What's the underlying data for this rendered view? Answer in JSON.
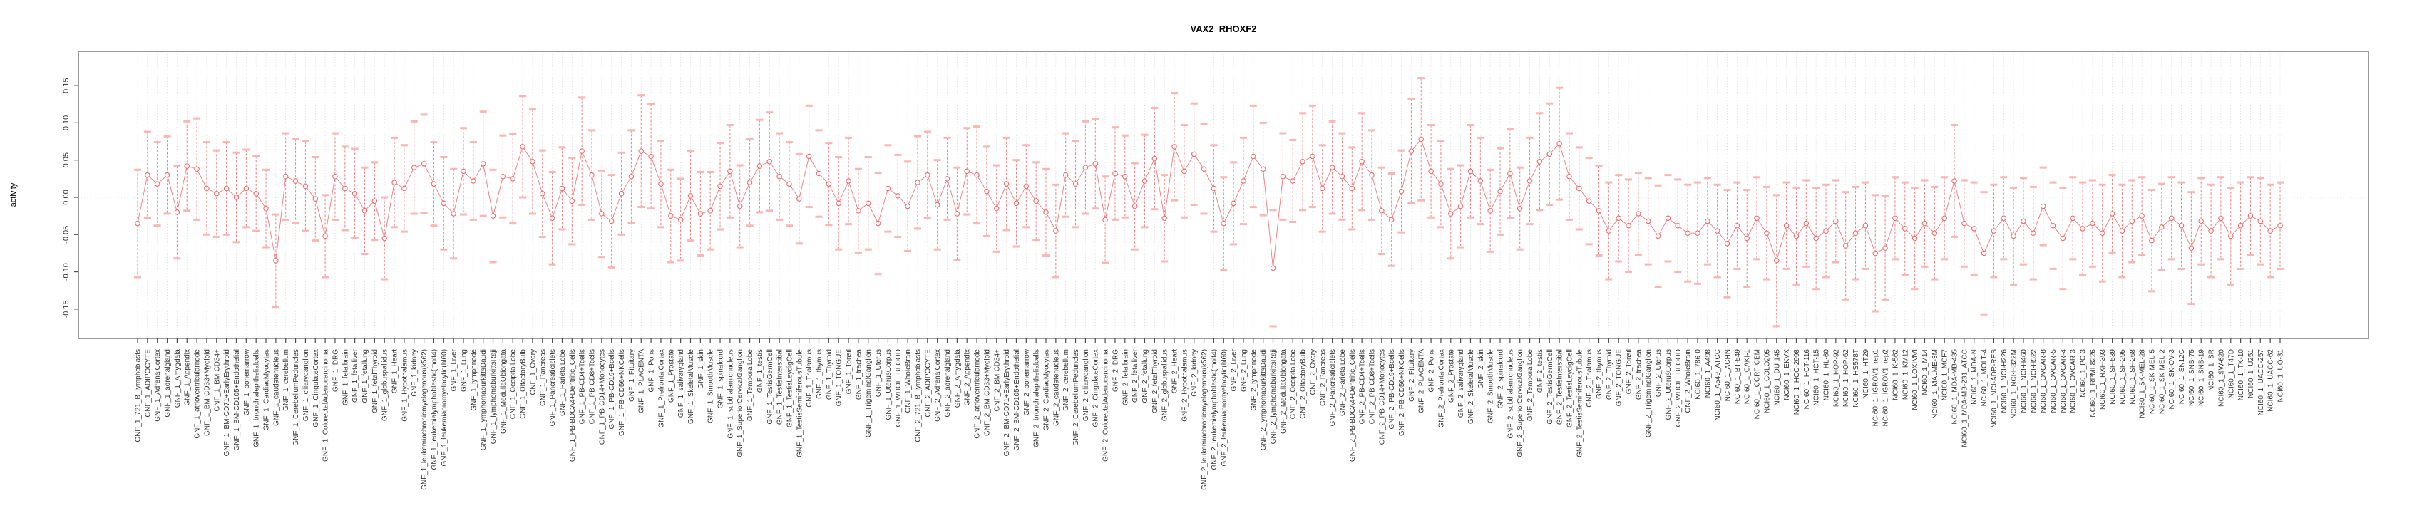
{
  "title": "VAX2_RHOXF2",
  "colors": {
    "series_main": "#F1696B",
    "errorbar_cap": "#F8B6B4",
    "gridline": "#d0d0d0",
    "zero_line": "#dadada",
    "panel_border": "#9a9a9a",
    "tick_mark": "#4d4d4d",
    "tick_text": "#333333",
    "title_text": "#000000",
    "background": "#ffffff"
  },
  "chart_data": {
    "type": "scatter",
    "title": "VAX2_RHOXF2",
    "xlabel": "",
    "ylabel": "activity",
    "ylim": [
      -0.19,
      0.196
    ],
    "yticks": [
      -0.15,
      -0.1,
      -0.05,
      0.0,
      0.05,
      0.1,
      0.15
    ],
    "grid": "vertical dotted gridline at every category; dotted horizontal line at y=0 only",
    "legend_position": "none",
    "error_bars": true,
    "point_style": "open-circle, connected by thin line, vertical dashed error bar with light caps",
    "groups": [
      {
        "prefix": "GNF_1_",
        "items": [
          "721_B_lymphoblasts",
          "ADIPOCYTE",
          "AdrenalCortex",
          "adrenalgland",
          "Amygdala",
          "Appendix",
          "atrioventricularnode",
          "BM-CD33+Myeloid",
          "BM-CD34+",
          "BM-CD71+EarlyErythroid",
          "BM-CD105+Endothelial",
          "bonemarrow",
          "bronchialepithelialcells",
          "CardiacMyocytes",
          "caudatenucleus",
          "cerebellum",
          "CerebellumPeduncles",
          "ciliaryganglion",
          "CingulateCortex",
          "ColorectalAdenocarcinoma",
          "DRG",
          "fetalbrain",
          "fetalliver",
          "fetallung",
          "fetalThyroid",
          "globuspallidus",
          "Heart",
          "Hypothalamus",
          "kidney",
          "leukemiachronicmyelogenous(k562)",
          "leukemialymphoblastic(molt4)",
          "leukemiapromyelocytic(hl60)",
          "Liver",
          "Lung",
          "lymphnode",
          "lymphomaburkittsDaudi",
          "lymphomaburkittsRaji",
          "MedullaOblongata",
          "OccipitalLobe",
          "OlfactoryBulb",
          "Ovary",
          "Pancreas",
          "PancreaticIslets",
          "ParietalLobe",
          "PB-BDCA4+Dentritic_Cells",
          "PB-CD4+Tcells",
          "PB-CD8+Tcells",
          "PB-CD14+Monocytes",
          "PB-CD19+Bcells",
          "PB-CD56+NKCells",
          "Pituitary",
          "PLACENTA",
          "Pons",
          "PrefrontalCortex",
          "Prostate",
          "salivarygland",
          "SkeletalMuscle",
          "skin",
          "SmoothMuscle",
          "spinalcord",
          "subthalamicnucleus",
          "SuperiorCervicalGanglion",
          "TemporalLobe",
          "testis",
          "TestisGermCell",
          "TestisInterstitial",
          "TestisLeydigCell",
          "TestisSeminiferousTubule",
          "Thalamus",
          "thymus",
          "Thyroid",
          "TONGUE",
          "Tonsil",
          "trachea",
          "TrigeminalGanglion",
          "Uterus",
          "UterusCorpus",
          "WHOLEBLOOD",
          "WholeBrain"
        ],
        "values": [
          -0.035,
          0.03,
          0.018,
          0.03,
          -0.02,
          0.042,
          0.038,
          0.012,
          0.005,
          0.012,
          0.0,
          0.012,
          0.005,
          -0.015,
          -0.085,
          0.028,
          0.022,
          0.015,
          -0.002,
          -0.052,
          0.028,
          0.012,
          0.005,
          -0.018,
          -0.005,
          -0.055,
          0.02,
          0.012,
          0.04,
          0.045,
          0.018,
          -0.008,
          -0.022,
          0.035,
          0.022,
          0.045,
          -0.025,
          0.028,
          0.025,
          0.068,
          0.048,
          0.005,
          -0.028,
          0.012,
          -0.005,
          0.062,
          0.03,
          -0.022,
          -0.032,
          0.005,
          0.028,
          0.062,
          0.055,
          0.018,
          -0.025,
          -0.03,
          0.002,
          -0.022,
          -0.018,
          0.015,
          0.035,
          -0.012,
          0.02,
          0.042,
          0.048,
          0.028,
          0.018,
          -0.002,
          0.055,
          0.032,
          0.018,
          -0.008,
          0.022,
          -0.018,
          -0.008,
          -0.035,
          0.012,
          0.002,
          -0.012
        ],
        "errors": [
          0.072,
          0.058,
          0.056,
          0.052,
          0.062,
          0.06,
          0.068,
          0.062,
          0.058,
          0.062,
          0.06,
          0.052,
          0.05,
          0.052,
          0.062,
          0.058,
          0.056,
          0.06,
          0.056,
          0.055,
          0.058,
          0.056,
          0.06,
          0.058,
          0.052,
          0.055,
          0.06,
          0.058,
          0.062,
          0.066,
          0.056,
          0.062,
          0.06,
          0.058,
          0.052,
          0.07,
          0.062,
          0.055,
          0.06,
          0.068,
          0.07,
          0.058,
          0.062,
          0.055,
          0.058,
          0.072,
          0.06,
          0.058,
          0.062,
          0.055,
          0.062,
          0.075,
          0.07,
          0.058,
          0.062,
          0.055,
          0.06,
          0.056,
          0.052,
          0.058,
          0.062,
          0.055,
          0.058,
          0.062,
          0.066,
          0.058,
          0.056,
          0.06,
          0.068,
          0.058,
          0.055,
          0.062,
          0.058,
          0.056,
          0.062,
          0.068,
          0.058,
          0.055,
          0.06
        ]
      },
      {
        "prefix": "GNF_2_",
        "items": [
          "721_B_lymphoblasts",
          "ADIPOCYTE",
          "AdrenalCortex",
          "adrenalgland",
          "Amygdala",
          "Appendix",
          "atrioventricularnode",
          "BM-CD33+Myeloid",
          "BM-CD34+",
          "BM-CD71+EarlyErythroid",
          "BM-CD105+Endothelial",
          "bonemarrow",
          "bronchialepithelialcells",
          "CardiacMyocytes",
          "caudatenucleus",
          "cerebellum",
          "CerebellumPeduncles",
          "ciliaryganglion",
          "CingulateCortex",
          "ColorectalAdenocarcinoma",
          "DRG",
          "fetalbrain",
          "fetalliver",
          "fetallung",
          "fetalThyroid",
          "globuspallidus",
          "Heart",
          "Hypothalamus",
          "kidney",
          "leukemiachronicmyelogenous(k562)",
          "leukemialymphoblastic(molt4)",
          "leukemiapromyelocytic(hl60)",
          "Liver",
          "Lung",
          "lymphnode",
          "lymphomaburkittsDaudi",
          "lymphomaburkittsRaji",
          "MedullaOblongata",
          "OccipitalLobe",
          "OlfactoryBulb",
          "Ovary",
          "Pancreas",
          "PancreaticIslets",
          "ParietalLobe",
          "PB-BDCA4+Dentritic_Cells",
          "PB-CD4+Tcells",
          "PB-CD8+Tcells",
          "PB-CD14+Monocytes",
          "PB-CD19+Bcells",
          "PB-CD56+NKCells",
          "Pituitary",
          "PLACENTA",
          "Pons",
          "PrefrontalCortex",
          "Prostate",
          "salivarygland",
          "SkeletalMuscle",
          "skin",
          "SmoothMuscle",
          "spinalcord",
          "subthalamicnucleus",
          "SuperiorCervicalGanglion",
          "TemporalLobe",
          "testis",
          "TestisGermCell",
          "TestisInterstitial",
          "TestisLeydigCell",
          "TestisSeminiferousTubule",
          "Thalamus",
          "thymus",
          "Thyroid",
          "TONGUE",
          "Tonsil",
          "trachea",
          "TrigeminalGanglion",
          "Uterus",
          "UterusCorpus",
          "WHOLEBLOOD",
          "WholeBrain"
        ],
        "values": [
          0.02,
          0.03,
          -0.01,
          0.025,
          -0.022,
          0.035,
          0.03,
          0.008,
          -0.015,
          0.018,
          -0.008,
          0.015,
          -0.005,
          -0.02,
          -0.045,
          0.03,
          0.018,
          0.04,
          0.045,
          -0.03,
          0.032,
          0.028,
          -0.012,
          0.022,
          0.052,
          -0.028,
          0.068,
          0.035,
          0.058,
          0.038,
          0.012,
          -0.035,
          -0.008,
          0.022,
          0.055,
          0.038,
          -0.095,
          0.028,
          0.022,
          0.048,
          0.055,
          0.012,
          0.04,
          0.028,
          0.012,
          0.048,
          0.03,
          -0.018,
          -0.03,
          0.008,
          0.062,
          0.078,
          0.035,
          0.018,
          -0.022,
          -0.012,
          0.035,
          0.022,
          -0.018,
          0.008,
          0.032,
          -0.015,
          0.022,
          0.048,
          0.058,
          0.072,
          0.028,
          0.012,
          -0.005,
          -0.018,
          -0.045,
          -0.028,
          -0.038,
          -0.022,
          -0.032,
          -0.052,
          -0.028,
          -0.038,
          -0.048
        ],
        "errors": [
          0.062,
          0.058,
          0.06,
          0.055,
          0.062,
          0.058,
          0.065,
          0.06,
          0.058,
          0.062,
          0.058,
          0.055,
          0.052,
          0.058,
          0.062,
          0.056,
          0.058,
          0.062,
          0.06,
          0.058,
          0.062,
          0.055,
          0.058,
          0.062,
          0.068,
          0.058,
          0.072,
          0.062,
          0.068,
          0.06,
          0.058,
          0.062,
          0.055,
          0.058,
          0.068,
          0.062,
          0.078,
          0.058,
          0.055,
          0.065,
          0.068,
          0.058,
          0.062,
          0.058,
          0.055,
          0.065,
          0.06,
          0.058,
          0.062,
          0.055,
          0.07,
          0.082,
          0.062,
          0.058,
          0.06,
          0.055,
          0.062,
          0.058,
          0.055,
          0.058,
          0.06,
          0.055,
          0.058,
          0.065,
          0.068,
          0.075,
          0.058,
          0.055,
          0.058,
          0.06,
          0.065,
          0.058,
          0.062,
          0.055,
          0.058,
          0.068,
          0.058,
          0.062,
          0.065
        ]
      },
      {
        "prefix": "NCI60_1_",
        "items": [
          "786-0",
          "A498",
          "A549_ATCC",
          "ACHN",
          "BT-549",
          "CAKI-1",
          "CCRF-CEM",
          "COLO205",
          "DU-145",
          "EKVX",
          "HCC-2998",
          "HCT-116",
          "HCT-15",
          "HL-60",
          "HOP-92",
          "HOP-62",
          "HS578T",
          "HT29",
          "IGROV1_rep1",
          "IGROV1_rep2",
          "K-562",
          "KM12",
          "LOXIMVI",
          "M14",
          "MALME-3M",
          "MCF7",
          "MDA-MB-435",
          "MDA-MB-231_ATCC",
          "MDA-N",
          "MOLT-4",
          "NCI-ADR-RES",
          "NCI-H226",
          "NCI-H322M",
          "NCI-H460",
          "NCI-H522",
          "OVCAR-8",
          "OVCAR-5",
          "OVCAR-4",
          "OVCAR-3",
          "PC-3",
          "RPMI-8226",
          "RXF-393",
          "SF-539",
          "SF-295",
          "SF-268",
          "SK-MEL-28",
          "SK-MEL-5",
          "SK-MEL-2",
          "SK-OV-3",
          "SN12C",
          "SNB-75",
          "SNB-19",
          "SR",
          "SW-620",
          "T47D",
          "TK-10",
          "U251",
          "UACC-257",
          "UACC-62",
          "UO-31"
        ],
        "values": [
          -0.048,
          -0.032,
          -0.045,
          -0.062,
          -0.038,
          -0.055,
          -0.028,
          -0.048,
          -0.085,
          -0.038,
          -0.052,
          -0.035,
          -0.055,
          -0.045,
          -0.032,
          -0.065,
          -0.048,
          -0.038,
          -0.075,
          -0.068,
          -0.028,
          -0.042,
          -0.055,
          -0.035,
          -0.048,
          -0.028,
          0.022,
          -0.035,
          -0.042,
          -0.075,
          -0.045,
          -0.028,
          -0.052,
          -0.032,
          -0.048,
          -0.012,
          -0.038,
          -0.055,
          -0.028,
          -0.042,
          -0.035,
          -0.048,
          -0.022,
          -0.045,
          -0.032,
          -0.025,
          -0.058,
          -0.04,
          -0.028,
          -0.038,
          -0.068,
          -0.032,
          -0.045,
          -0.028,
          -0.052,
          -0.038,
          -0.025,
          -0.032,
          -0.045,
          -0.038
        ],
        "errors": [
          0.068,
          0.058,
          0.062,
          0.072,
          0.058,
          0.065,
          0.055,
          0.062,
          0.088,
          0.058,
          0.065,
          0.058,
          0.068,
          0.062,
          0.055,
          0.072,
          0.062,
          0.058,
          0.078,
          0.07,
          0.055,
          0.062,
          0.068,
          0.058,
          0.062,
          0.055,
          0.075,
          0.058,
          0.062,
          0.082,
          0.062,
          0.055,
          0.065,
          0.058,
          0.062,
          0.052,
          0.058,
          0.068,
          0.055,
          0.062,
          0.058,
          0.065,
          0.052,
          0.062,
          0.055,
          0.052,
          0.068,
          0.058,
          0.055,
          0.058,
          0.075,
          0.058,
          0.062,
          0.055,
          0.065,
          0.058,
          0.052,
          0.058,
          0.062,
          0.058
        ]
      }
    ]
  }
}
